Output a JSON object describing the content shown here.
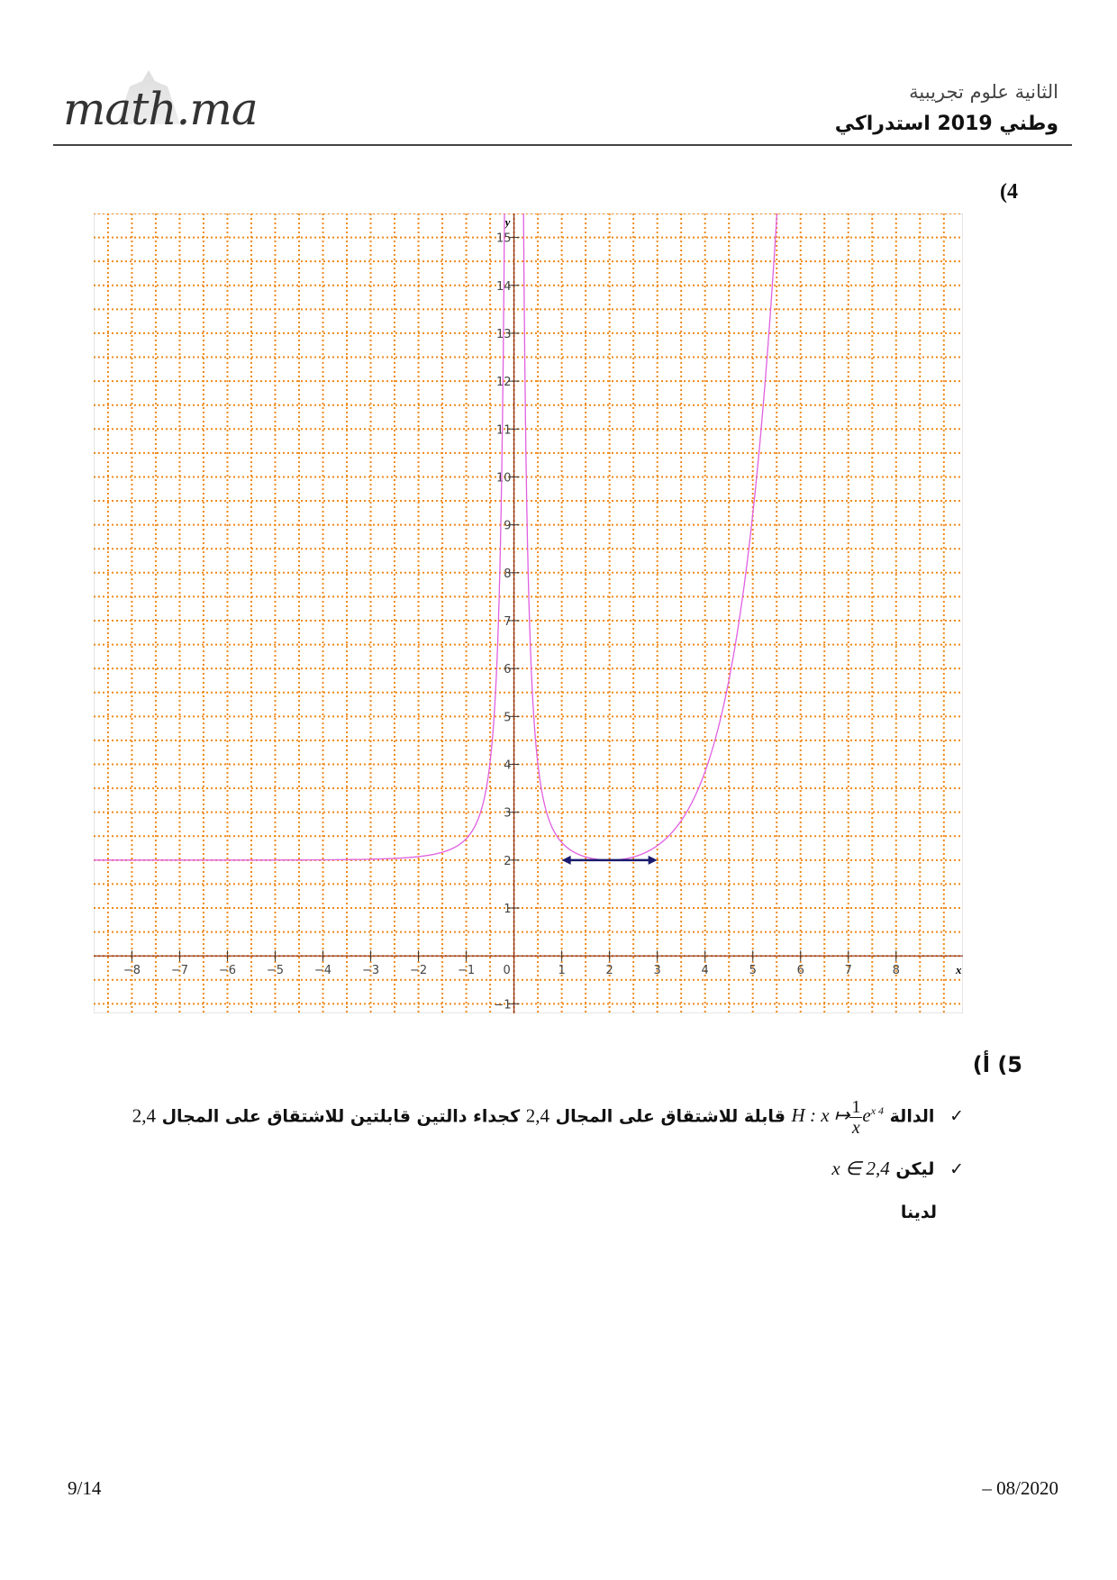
{
  "header": {
    "logo": "math.ma",
    "level": "الثانية علوم تجريبية",
    "exam": "وطني 2019 استدراكي"
  },
  "question4": {
    "label": "(4"
  },
  "chart_data": {
    "type": "line",
    "title": "",
    "xlabel": "x",
    "ylabel": "y",
    "xlim": [
      -8.8,
      9.4
    ],
    "ylim": [
      -1.2,
      15.5
    ],
    "grid": true,
    "grid_step": 0.5,
    "x_ticks": [
      "−8",
      "−7",
      "−6",
      "−5",
      "−4",
      "−3",
      "−2",
      "−1",
      "0",
      "1",
      "2",
      "3",
      "4",
      "5",
      "6",
      "7",
      "8"
    ],
    "y_ticks": [
      "−1",
      "1",
      "2",
      "3",
      "4",
      "5",
      "6",
      "7",
      "8",
      "9",
      "10",
      "11",
      "12",
      "13",
      "14",
      "15"
    ],
    "curve_color": "#e060e0",
    "grid_color": "#f08a1c",
    "axis_color": "#8b2a10",
    "vertical_asymptote": 0,
    "horizontal_asymptote": 2,
    "minimum": {
      "x": 2,
      "y": 2
    },
    "horizontal_tangent_segment": {
      "x": [
        1,
        3
      ],
      "y": 2,
      "color": "#1a1a6e"
    }
  },
  "question5": {
    "label": "5) أ)",
    "line1": {
      "check": "✓",
      "t1": "الدالة",
      "H": "H : x ↦",
      "num": "1",
      "den": "x",
      "exp": "e",
      "exp_sup": "x  4",
      "t2": "قابلة للاشتقاق على المجال",
      "interval": "2,4",
      "t3": "كجداء دالتين قابلتين للاشتقاق على المجال",
      "interval2": "2,4"
    },
    "line2": {
      "check": "✓",
      "t1": "ليكن",
      "expr": "x ∈ 2,4"
    },
    "line3": {
      "t1": "لدينا"
    }
  },
  "footer": {
    "page": "9/14",
    "date": "– 08/2020"
  }
}
